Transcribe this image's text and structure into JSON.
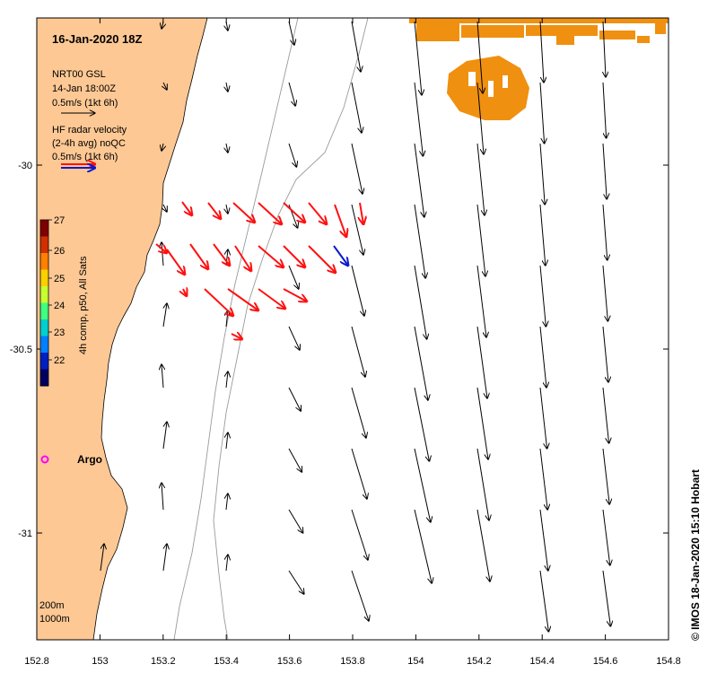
{
  "map": {
    "date_title": "16-Jan-2020 18Z",
    "legend": {
      "model_line1": "NRT00 GSL",
      "model_line2": "14-Jan 18:00Z",
      "model_scale": "0.5m/s (1kt 6h)",
      "radar_line1": "HF radar velocity",
      "radar_line2": "(2-4h avg) noQC",
      "radar_scale": "0.5m/s (1kt 6h)"
    },
    "colorbar": {
      "label": "4h comp, p50, All Sats",
      "ticks": [
        "27",
        "26",
        "25",
        "24",
        "23",
        "22"
      ],
      "colors": [
        "#7f0000",
        "#d03000",
        "#ff8000",
        "#ffd000",
        "#c8ff30",
        "#40ff80",
        "#00d0d0",
        "#0080ff",
        "#0020c0",
        "#00005f"
      ]
    },
    "x_ticks": [
      "152.8",
      "153",
      "153.2",
      "153.4",
      "153.6",
      "153.8",
      "154",
      "154.2",
      "154.4",
      "154.6",
      "154.8"
    ],
    "y_ticks": [
      "-30",
      "-30.5",
      "-31"
    ],
    "argo_label": "Argo",
    "depth_labels": [
      "200m",
      "1000m"
    ],
    "credit": "© IMOS 18-Jan-2020 15:10 Hobart",
    "colors": {
      "land": "#fdc894",
      "sst": "#f09010",
      "model_arrow": "#000000",
      "radar_primary": "#ff1010",
      "radar_secondary": "#0a1acc",
      "argo": "#ff00ff",
      "isobath": "#9a9a9a"
    }
  }
}
